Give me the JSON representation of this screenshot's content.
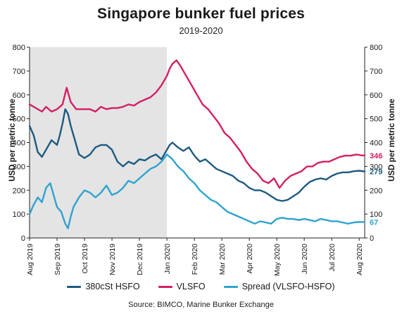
{
  "header": {
    "title": "Singapore bunker fuel prices",
    "subtitle": "2019-2020"
  },
  "source": "Source: BIMCO, Marine Bunker Exchange",
  "chart_data": {
    "type": "line",
    "title": "Singapore bunker fuel prices",
    "subtitle": "2019-2020",
    "ylabel": "USD per metric tonne",
    "ylim": [
      0,
      800
    ],
    "y_ticks": [
      "0",
      "100",
      "200",
      "300",
      "400",
      "500",
      "600",
      "700",
      "800"
    ],
    "x_ticks": [
      "Aug 2019",
      "Sep 2019",
      "Oct 2019",
      "Nov 2019",
      "Dec 2019",
      "Jan 2020",
      "Feb 2020",
      "Mar 2020",
      "Apr 2020",
      "May 2020",
      "Jun 2020",
      "Jul 2020",
      "Aug 2020"
    ],
    "shaded_region": {
      "from_month": 0,
      "to_month": 5
    },
    "grid": false,
    "legend_position": "bottom",
    "end_labels": [
      "346",
      "279",
      "67"
    ],
    "series": [
      {
        "name": "380cSt HSFO",
        "color": "#1d5a80",
        "x": [
          0,
          0.15,
          0.3,
          0.45,
          0.6,
          0.8,
          1,
          1.1,
          1.2,
          1.3,
          1.4,
          1.5,
          1.65,
          1.8,
          2,
          2.2,
          2.4,
          2.6,
          2.8,
          3,
          3.2,
          3.4,
          3.6,
          3.8,
          4,
          4.2,
          4.4,
          4.6,
          4.8,
          5,
          5.1,
          5.2,
          5.4,
          5.6,
          5.8,
          6,
          6.2,
          6.4,
          6.6,
          6.8,
          7,
          7.2,
          7.4,
          7.6,
          7.8,
          8,
          8.2,
          8.4,
          8.6,
          8.8,
          9,
          9.2,
          9.4,
          9.6,
          9.8,
          10,
          10.2,
          10.4,
          10.6,
          10.8,
          11,
          11.2,
          11.4,
          11.6,
          11.8,
          12,
          12.2
        ],
        "y": [
          470,
          430,
          360,
          340,
          370,
          410,
          390,
          430,
          480,
          540,
          520,
          470,
          410,
          350,
          335,
          350,
          380,
          390,
          390,
          370,
          320,
          300,
          320,
          310,
          330,
          325,
          340,
          350,
          330,
          370,
          390,
          400,
          380,
          365,
          380,
          345,
          320,
          330,
          310,
          290,
          280,
          270,
          260,
          240,
          230,
          210,
          200,
          200,
          190,
          175,
          160,
          155,
          160,
          175,
          190,
          215,
          235,
          245,
          250,
          245,
          260,
          270,
          275,
          275,
          280,
          282,
          279
        ]
      },
      {
        "name": "VLSFO",
        "color": "#d31f63",
        "x": [
          0,
          0.15,
          0.3,
          0.45,
          0.6,
          0.8,
          1,
          1.2,
          1.35,
          1.5,
          1.7,
          2,
          2.2,
          2.4,
          2.6,
          2.8,
          3,
          3.2,
          3.4,
          3.6,
          3.8,
          4,
          4.2,
          4.4,
          4.6,
          4.8,
          5,
          5.1,
          5.2,
          5.35,
          5.5,
          5.7,
          5.9,
          6.1,
          6.3,
          6.5,
          6.7,
          6.9,
          7.1,
          7.3,
          7.5,
          7.7,
          7.9,
          8.1,
          8.3,
          8.5,
          8.7,
          8.9,
          9.1,
          9.3,
          9.5,
          9.7,
          9.9,
          10.1,
          10.3,
          10.5,
          10.7,
          10.9,
          11.1,
          11.3,
          11.5,
          11.7,
          11.9,
          12.1,
          12.2
        ],
        "y": [
          560,
          550,
          540,
          530,
          550,
          530,
          540,
          560,
          630,
          570,
          540,
          540,
          540,
          530,
          550,
          540,
          545,
          545,
          550,
          560,
          555,
          570,
          580,
          590,
          610,
          640,
          680,
          710,
          730,
          745,
          720,
          680,
          640,
          600,
          560,
          540,
          510,
          480,
          440,
          420,
          390,
          360,
          320,
          290,
          270,
          240,
          230,
          250,
          210,
          240,
          260,
          270,
          280,
          300,
          300,
          315,
          320,
          320,
          330,
          340,
          345,
          345,
          350,
          346,
          346
        ]
      },
      {
        "name": "Spread (VLSFO-HSFO)",
        "color": "#2fa3cf",
        "x": [
          0,
          0.15,
          0.3,
          0.45,
          0.6,
          0.75,
          0.9,
          1,
          1.15,
          1.3,
          1.4,
          1.5,
          1.6,
          1.8,
          2,
          2.2,
          2.4,
          2.6,
          2.8,
          3,
          3.2,
          3.4,
          3.6,
          3.8,
          4,
          4.2,
          4.4,
          4.6,
          4.8,
          5,
          5.2,
          5.4,
          5.6,
          5.8,
          6,
          6.2,
          6.4,
          6.6,
          6.8,
          7,
          7.2,
          7.4,
          7.6,
          7.8,
          8,
          8.2,
          8.4,
          8.6,
          8.8,
          9,
          9.2,
          9.4,
          9.6,
          9.8,
          10,
          10.2,
          10.4,
          10.6,
          10.8,
          11,
          11.2,
          11.4,
          11.6,
          11.8,
          12,
          12.2
        ],
        "y": [
          100,
          140,
          170,
          150,
          210,
          230,
          170,
          130,
          110,
          60,
          40,
          90,
          130,
          170,
          200,
          190,
          170,
          190,
          220,
          180,
          190,
          210,
          240,
          230,
          250,
          270,
          290,
          300,
          320,
          350,
          330,
          300,
          280,
          250,
          230,
          200,
          180,
          160,
          150,
          130,
          110,
          100,
          90,
          80,
          70,
          60,
          70,
          65,
          60,
          80,
          85,
          80,
          80,
          75,
          80,
          75,
          70,
          80,
          75,
          70,
          70,
          65,
          60,
          65,
          67,
          67
        ]
      }
    ]
  }
}
